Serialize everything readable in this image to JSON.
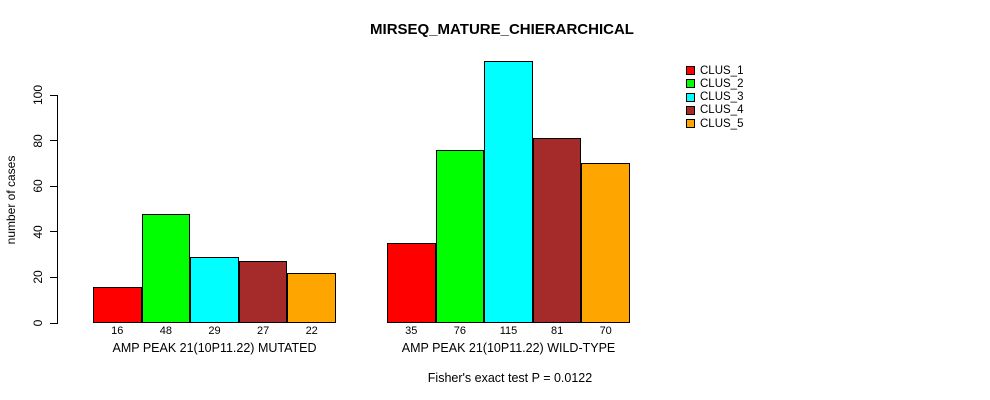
{
  "chart_data": {
    "type": "bar",
    "title": "MIRSEQ_MATURE_CHIERARCHICAL",
    "xlabel": "",
    "ylabel": "number of cases",
    "annotation": "Fisher's exact test P = 0.0122",
    "categories": [
      "AMP PEAK 21(10P11.22) MUTATED",
      "AMP PEAK 21(10P11.22) WILD-TYPE"
    ],
    "series": [
      {
        "name": "CLUS_1",
        "color": "#FF0000",
        "values": [
          16,
          35
        ]
      },
      {
        "name": "CLUS_2",
        "color": "#00FF00",
        "values": [
          48,
          76
        ]
      },
      {
        "name": "CLUS_3",
        "color": "#00FFFF",
        "values": [
          29,
          115
        ]
      },
      {
        "name": "CLUS_4",
        "color": "#A52A2A",
        "values": [
          27,
          81
        ]
      },
      {
        "name": "CLUS_5",
        "color": "#FFA500",
        "values": [
          22,
          70
        ]
      }
    ],
    "bar_value_labels": [
      [
        16,
        48,
        29,
        27,
        22
      ],
      [
        35,
        76,
        115,
        81,
        70
      ]
    ],
    "yticks": [
      0,
      20,
      40,
      60,
      80,
      100
    ],
    "ylim": [
      0,
      115
    ],
    "grid": false,
    "legend_position": "right",
    "background_color": "#FFFFFF",
    "bar_border_color": "#000000",
    "text_color": "#000000"
  }
}
